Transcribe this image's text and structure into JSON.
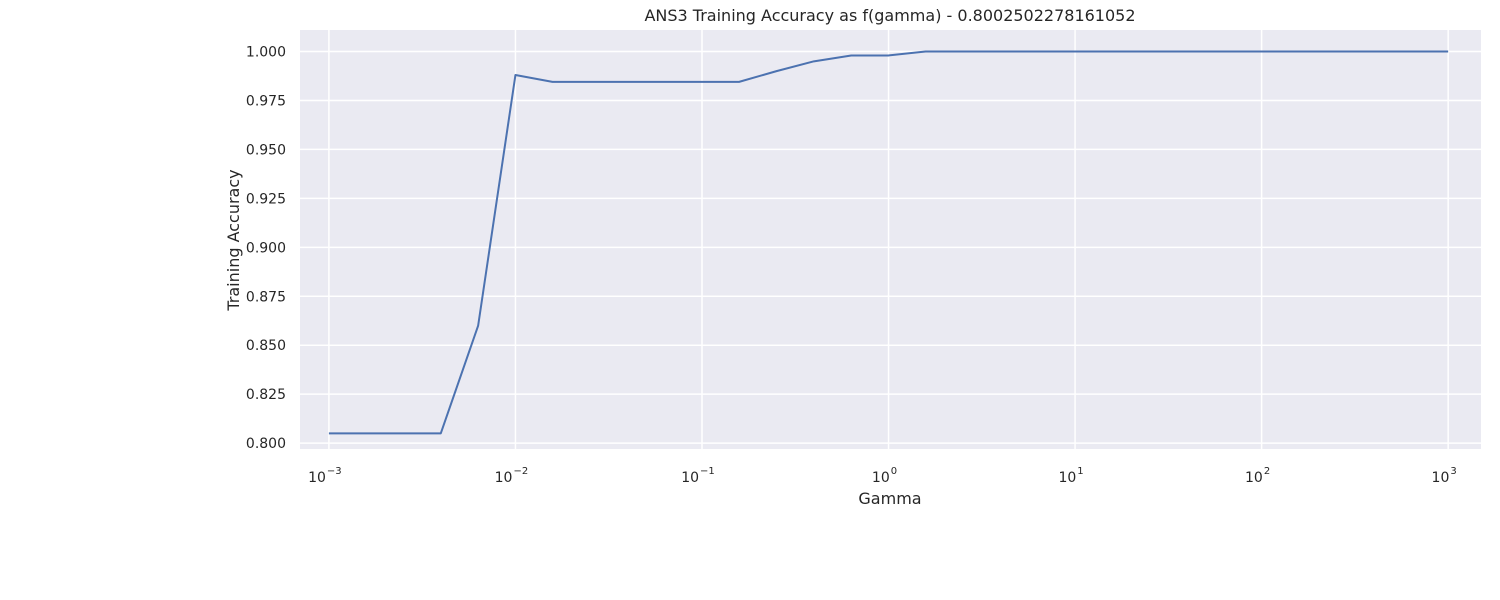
{
  "chart_data": {
    "type": "line",
    "title": "ANS3 Training Accuracy as f(gamma) - 0.8002502278161052",
    "xlabel": "Gamma",
    "ylabel": "Training Accuracy",
    "xscale": "log",
    "xlim": [
      0.0007,
      1500
    ],
    "ylim": [
      0.797,
      1.011
    ],
    "grid": true,
    "xticks": [
      {
        "value": 0.001,
        "base": "10",
        "exp": "−3"
      },
      {
        "value": 0.01,
        "base": "10",
        "exp": "−2"
      },
      {
        "value": 0.1,
        "base": "10",
        "exp": "−1"
      },
      {
        "value": 1,
        "base": "10",
        "exp": "0"
      },
      {
        "value": 10,
        "base": "10",
        "exp": "1"
      },
      {
        "value": 100,
        "base": "10",
        "exp": "2"
      },
      {
        "value": 1000,
        "base": "10",
        "exp": "3"
      }
    ],
    "yticks": [
      {
        "value": 0.8,
        "label": "0.800"
      },
      {
        "value": 0.825,
        "label": "0.825"
      },
      {
        "value": 0.85,
        "label": "0.850"
      },
      {
        "value": 0.875,
        "label": "0.875"
      },
      {
        "value": 0.9,
        "label": "0.900"
      },
      {
        "value": 0.925,
        "label": "0.925"
      },
      {
        "value": 0.95,
        "label": "0.950"
      },
      {
        "value": 0.975,
        "label": "0.975"
      },
      {
        "value": 1.0,
        "label": "1.000"
      }
    ],
    "series": [
      {
        "color": "#4c72b0",
        "x": [
          0.001,
          0.00159,
          0.00251,
          0.00398,
          0.00631,
          0.01,
          0.0158,
          0.0251,
          0.0398,
          0.0631,
          0.1,
          0.158,
          0.251,
          0.398,
          0.631,
          1.0,
          1.58,
          2.51,
          3.98,
          6.31,
          10,
          15.8,
          25.1,
          39.8,
          63.1,
          100,
          158,
          251,
          398,
          631,
          1000
        ],
        "y": [
          0.805,
          0.805,
          0.805,
          0.805,
          0.86,
          0.988,
          0.9845,
          0.9845,
          0.9845,
          0.9845,
          0.9845,
          0.9845,
          0.99,
          0.995,
          0.998,
          0.998,
          1.0,
          1.0,
          1.0,
          1.0,
          1.0,
          1.0,
          1.0,
          1.0,
          1.0,
          1.0,
          1.0,
          1.0,
          1.0,
          1.0,
          1.0
        ]
      }
    ]
  }
}
